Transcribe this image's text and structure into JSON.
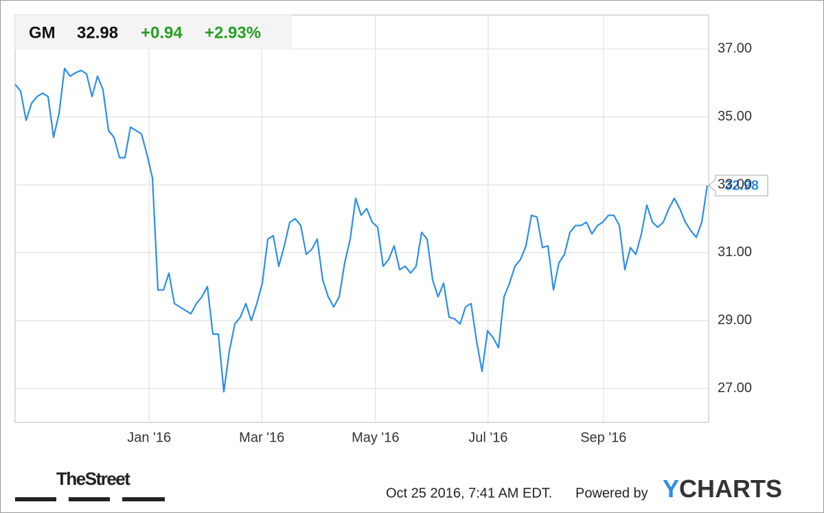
{
  "header": {
    "symbol": "GM",
    "price": "32.98",
    "change": "+0.94",
    "change_pct": "+2.93%"
  },
  "chart_data": {
    "type": "line",
    "series": [
      {
        "color": "#2b8ee8",
        "values": [
          35.96,
          35.76,
          34.9,
          35.4,
          35.6,
          35.7,
          35.6,
          34.4,
          35.1,
          36.43,
          36.2,
          36.3,
          36.37,
          36.27,
          35.6,
          36.2,
          35.8,
          34.6,
          34.4,
          33.8,
          33.8,
          34.7,
          34.6,
          34.5,
          33.9,
          33.2,
          29.9,
          29.9,
          30.4,
          29.5,
          29.4,
          29.3,
          29.2,
          29.5,
          29.7,
          30.0,
          28.6,
          28.6,
          26.9,
          28.1,
          28.9,
          29.1,
          29.5,
          29.0,
          29.5,
          30.1,
          31.4,
          31.5,
          30.6,
          31.2,
          31.9,
          32.0,
          31.8,
          30.95,
          31.1,
          31.4,
          30.2,
          29.7,
          29.4,
          29.7,
          30.7,
          31.4,
          32.6,
          32.1,
          32.3,
          31.9,
          31.75,
          30.6,
          30.8,
          31.2,
          30.5,
          30.6,
          30.4,
          30.6,
          31.6,
          31.4,
          30.2,
          29.7,
          30.1,
          29.1,
          29.05,
          28.9,
          29.4,
          29.5,
          28.4,
          27.5,
          28.7,
          28.5,
          28.2,
          29.7,
          30.1,
          30.6,
          30.8,
          31.2,
          32.1,
          32.05,
          31.15,
          31.2,
          29.9,
          30.7,
          30.95,
          31.6,
          31.8,
          31.8,
          31.9,
          31.55,
          31.8,
          31.9,
          32.1,
          32.1,
          31.8,
          30.5,
          31.15,
          30.95,
          31.55,
          32.4,
          31.9,
          31.75,
          31.9,
          32.3,
          32.6,
          32.3,
          31.9,
          31.65,
          31.45,
          31.9,
          32.98
        ]
      }
    ],
    "xlim": [
      0,
      126
    ],
    "xticks": [
      {
        "value": 24.4,
        "label": "Jan '16"
      },
      {
        "value": 44.9,
        "label": "Mar '16"
      },
      {
        "value": 65.6,
        "label": "May '16"
      },
      {
        "value": 86.1,
        "label": "Jul '16"
      },
      {
        "value": 107.1,
        "label": "Sep '16"
      }
    ],
    "ylim": [
      26,
      38
    ],
    "yticks": [
      {
        "value": 27,
        "label": "27.00"
      },
      {
        "value": 29,
        "label": "29.00"
      },
      {
        "value": 31,
        "label": "31.00"
      },
      {
        "value": 33,
        "label": "33.00"
      },
      {
        "value": 35,
        "label": "35.00"
      },
      {
        "value": 37,
        "label": "37.00"
      }
    ],
    "grid": true
  },
  "footer": {
    "source_logo": "TheStreet",
    "timestamp": "Oct 25 2016, 7:41 AM EDT.",
    "powered_by": "Powered by",
    "brand": "YCHARTS"
  }
}
